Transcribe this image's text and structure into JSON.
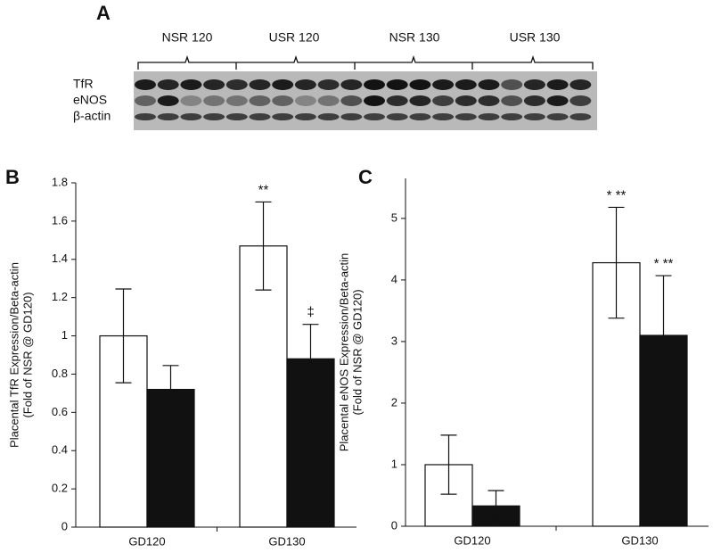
{
  "blot": {
    "panel_label": "A",
    "groups": [
      "NSR 120",
      "USR 120",
      "NSR 130",
      "USR 130"
    ],
    "rows": [
      "TfR",
      "eNOS",
      "β-actin"
    ]
  },
  "chart_data": [
    {
      "type": "bar",
      "panel_label": "B",
      "ylabel": [
        "Placental TfR Expression/Beta-actin",
        "(Fold of NSR @ GD120)"
      ],
      "categories": [
        "GD120",
        "GD130"
      ],
      "series": [
        {
          "color": "#ffffff",
          "values": [
            1.0,
            1.47
          ],
          "errors": [
            0.245,
            0.23
          ],
          "annotations": [
            null,
            "**"
          ]
        },
        {
          "color": "#111111",
          "values": [
            0.72,
            0.88
          ],
          "errors": [
            0.125,
            0.18
          ],
          "annotations": [
            null,
            "‡"
          ]
        }
      ],
      "ylim": [
        0,
        1.8
      ],
      "yticks": [
        0,
        0.2,
        0.4,
        0.6,
        0.8,
        1,
        1.2,
        1.4,
        1.6,
        1.8
      ]
    },
    {
      "type": "bar",
      "panel_label": "C",
      "ylabel": [
        "Placental eNOS Expression/Beta-actin",
        "(Fold of NSR @ GD120)"
      ],
      "categories": [
        "GD120",
        "GD130"
      ],
      "series": [
        {
          "color": "#ffffff",
          "values": [
            1.0,
            4.28
          ],
          "errors": [
            0.48,
            0.9
          ],
          "annotations": [
            null,
            "* **"
          ]
        },
        {
          "color": "#111111",
          "values": [
            0.33,
            3.1
          ],
          "errors": [
            0.25,
            0.97
          ],
          "annotations": [
            null,
            "* **"
          ]
        }
      ],
      "ylim": [
        0,
        5.65
      ],
      "yticks": [
        0,
        1,
        2,
        3,
        4,
        5
      ]
    }
  ]
}
